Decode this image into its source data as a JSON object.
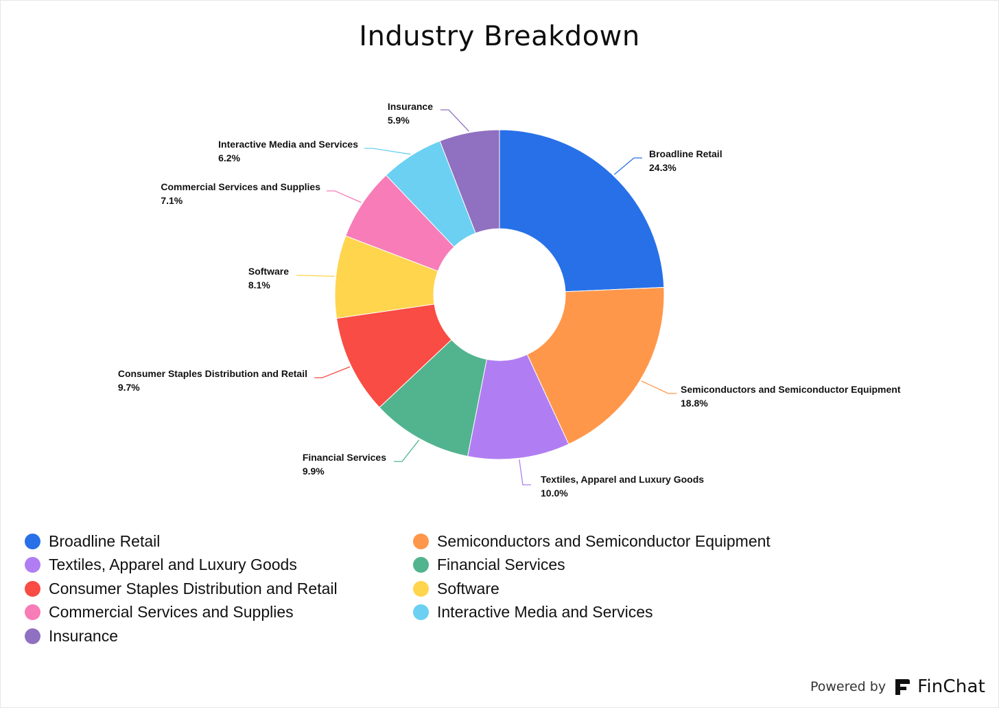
{
  "chart_data": {
    "type": "pie",
    "variant": "donut",
    "title": "Industry Breakdown",
    "legend_position": "bottom",
    "slices": [
      {
        "name": "Broadline Retail",
        "value": 24.3,
        "label": "24.3%",
        "color": "#2870E8"
      },
      {
        "name": "Semiconductors and Semiconductor Equipment",
        "value": 18.8,
        "label": "18.8%",
        "color": "#FF974B"
      },
      {
        "name": "Textiles, Apparel and Luxury Goods",
        "value": 10.0,
        "label": "10.0%",
        "color": "#B07EF2"
      },
      {
        "name": "Financial Services",
        "value": 9.9,
        "label": "9.9%",
        "color": "#52B48E"
      },
      {
        "name": "Consumer Staples Distribution and Retail",
        "value": 9.7,
        "label": "9.7%",
        "color": "#F94C44"
      },
      {
        "name": "Software",
        "value": 8.1,
        "label": "8.1%",
        "color": "#FFD54E"
      },
      {
        "name": "Commercial Services and Supplies",
        "value": 7.1,
        "label": "7.1%",
        "color": "#F77CB7"
      },
      {
        "name": "Interactive Media and Services",
        "value": 6.2,
        "label": "6.2%",
        "color": "#6BD0F2"
      },
      {
        "name": "Insurance",
        "value": 5.9,
        "label": "5.9%",
        "color": "#9070C0"
      }
    ]
  },
  "branding": {
    "prefix": "Powered by",
    "name": "FinChat",
    "logo_icon": "finchat-logo-icon"
  }
}
